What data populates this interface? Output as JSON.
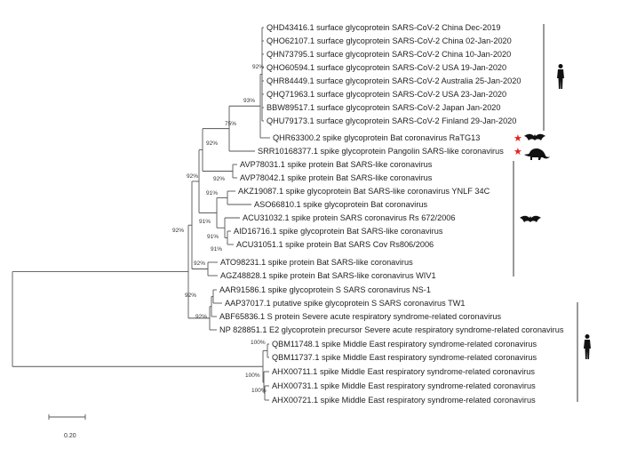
{
  "leaves": [
    {
      "id": "L1",
      "label": "QHD43416.1 surface glycoprotein SARS-CoV-2 China Dec-2019"
    },
    {
      "id": "L2",
      "label": "QHO62107.1 surface glycoprotein SARS-CoV-2 China 02-Jan-2020"
    },
    {
      "id": "L3",
      "label": "QHN73795.1 surface glycoprotein SARS-CoV-2 China 10-Jan-2020"
    },
    {
      "id": "L4",
      "label": "QHO60594.1 surface glycoprotein SARS-CoV-2 USA 19-Jan-2020"
    },
    {
      "id": "L5",
      "label": "QHR84449.1 surface glycoprotein SARS-CoV-2 Australia 25-Jan-2020"
    },
    {
      "id": "L6",
      "label": "QHQ71963.1 surface glycoprotein SARS-CoV-2 USA 23-Jan-2020"
    },
    {
      "id": "L7",
      "label": "BBW89517.1 surface glycoprotein SARS-CoV-2 Japan Jan-2020"
    },
    {
      "id": "L8",
      "label": "QHU79173.1 surface glycoprotein SARS-CoV-2 Finland 29-Jan-2020"
    },
    {
      "id": "L9",
      "label": "QHR63300.2 spike glycoprotein Bat coronavirus RaTG13",
      "star": true
    },
    {
      "id": "L10",
      "label": "SRR10168377.1 spike glycoprotein Pangolin SARS-like coronavirus",
      "star": true
    },
    {
      "id": "L11",
      "label": "AVP78031.1 spike protein Bat SARS-like coronavirus"
    },
    {
      "id": "L12",
      "label": "AVP78042.1 spike protein Bat SARS-like coronavirus"
    },
    {
      "id": "L13",
      "label": "AKZ19087.1 spike glycoprotein Bat SARS-like coronavirus YNLF 34C"
    },
    {
      "id": "L14",
      "label": "ASO66810.1 spike glycoprotein Bat coronavirus"
    },
    {
      "id": "L15",
      "label": "ACU31032.1 spike protein SARS coronavirus Rs 672/2006"
    },
    {
      "id": "L16",
      "label": "AID16716.1 spike glycoprotein Bat SARS-like coronavirus"
    },
    {
      "id": "L17",
      "label": "ACU31051.1 spike protein Bat SARS Cov Rs806/2006"
    },
    {
      "id": "L18",
      "label": "ATO98231.1 spike protein Bat SARS-like coronavirus"
    },
    {
      "id": "L19",
      "label": "AGZ48828.1 spike protein Bat SARS-like coronavirus WIV1"
    },
    {
      "id": "L20",
      "label": "AAR91586.1 spike glycoprotein S SARS coronavirus NS-1"
    },
    {
      "id": "L21",
      "label": "AAP37017.1 putative spike glycoprotein S SARS coronavirus TW1"
    },
    {
      "id": "L22",
      "label": "ABF65836.1 S protein Severe acute respiratory syndrome-related coronavirus"
    },
    {
      "id": "L23",
      "label": "NP 828851.1 E2 glycoprotein precursor Severe acute respiratory syndrome-related coronavirus"
    },
    {
      "id": "L24",
      "label": "QBM11748.1 spike Middle East respiratory syndrome-related coronavirus"
    },
    {
      "id": "L25",
      "label": "QBM11737.1 spike Middle East respiratory syndrome-related coronavirus"
    },
    {
      "id": "L26",
      "label": "AHX00711.1 spike Middle East respiratory syndrome-related coronavirus"
    },
    {
      "id": "L27",
      "label": "AHX00731.1 spike Middle East respiratory syndrome-related coronavirus"
    },
    {
      "id": "L28",
      "label": "AHX00721.1 spike Middle East respiratory syndrome-related coronavirus"
    }
  ],
  "bootstrap": [
    "92%",
    "93%",
    "75%",
    "92%",
    "92%",
    "92%",
    "91%",
    "91%",
    "91%",
    "91%",
    "92%",
    "92%",
    "92%",
    "92%",
    "100%",
    "100%",
    "100%"
  ],
  "scale_bar": {
    "label": "0.20",
    "value": 0.2
  },
  "host_icons": [
    {
      "name": "human-icon",
      "group": "SARS-CoV-2"
    },
    {
      "name": "bat-icon",
      "group": "RaTG13"
    },
    {
      "name": "pangolin-icon",
      "group": "Pangolin"
    },
    {
      "name": "bat-icon",
      "group": "Bat SARS-like"
    },
    {
      "name": "human-icon",
      "group": "MERS"
    }
  ],
  "colors": {
    "star": "#e8201c",
    "branch": "#555555",
    "icon": "#111111"
  }
}
